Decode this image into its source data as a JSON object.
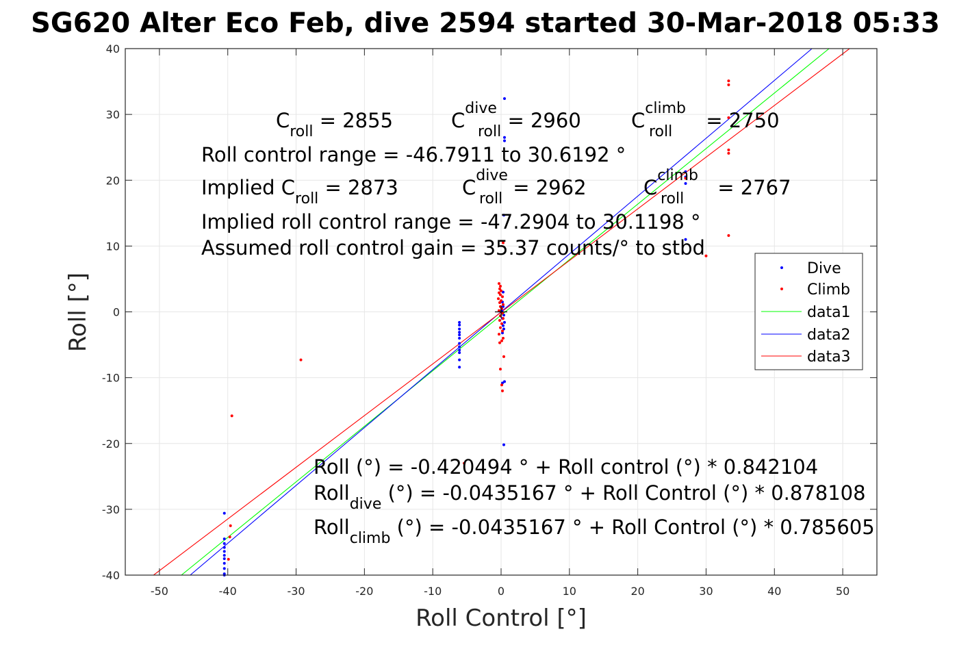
{
  "chart_data": {
    "type": "scatter",
    "title": "SG620 Alter Eco Feb, dive 2594 started 30-Mar-2018 05:33",
    "xlabel": "Roll Control [°]",
    "ylabel": "Roll [°]",
    "xlim": [
      -55,
      55
    ],
    "ylim": [
      -40,
      40
    ],
    "xticks": [
      -50,
      -40,
      -30,
      -20,
      -10,
      0,
      10,
      20,
      30,
      40,
      50
    ],
    "yticks": [
      -40,
      -30,
      -20,
      -10,
      0,
      10,
      20,
      30,
      40
    ],
    "xtick_labels": [
      "-50",
      "-40",
      "-30",
      "-20",
      "-10",
      "0",
      "10",
      "20",
      "30",
      "40",
      "50"
    ],
    "ytick_labels": [
      "-40",
      "-30",
      "-20",
      "-10",
      "0",
      "10",
      "20",
      "30",
      "40"
    ],
    "grid": true,
    "legend_position": "right",
    "series": [
      {
        "name": "Dive",
        "kind": "points",
        "color": "#0000ff",
        "points": [
          [
            0.5,
            32.4
          ],
          [
            0.5,
            26.5
          ],
          [
            0.5,
            26
          ],
          [
            27,
            21.3
          ],
          [
            27,
            20.5
          ],
          [
            27,
            19.5
          ],
          [
            27,
            11
          ],
          [
            0.4,
            14.7
          ],
          [
            0.3,
            3
          ],
          [
            0.2,
            1.5
          ],
          [
            0.3,
            0.8
          ],
          [
            0.1,
            0.2
          ],
          [
            0.4,
            -0.5
          ],
          [
            0.2,
            -1
          ],
          [
            0.5,
            -1.6
          ],
          [
            0.3,
            -2.1
          ],
          [
            0.4,
            -2.6
          ],
          [
            0.2,
            -3.2
          ],
          [
            0.5,
            -10.6
          ],
          [
            0.2,
            -10.8
          ],
          [
            0.4,
            -20.2
          ],
          [
            -6.1,
            -1.6
          ],
          [
            -6.1,
            -2
          ],
          [
            -6.1,
            -2.6
          ],
          [
            -6.1,
            -3.1
          ],
          [
            -6.1,
            -3.5
          ],
          [
            -6.1,
            -4
          ],
          [
            -6.1,
            -4.8
          ],
          [
            -6.1,
            -5.3
          ],
          [
            -6.1,
            -5.8
          ],
          [
            -6.1,
            -6.2
          ],
          [
            -6.1,
            -7.3
          ],
          [
            -6.1,
            -8.4
          ],
          [
            -40.5,
            -30.6
          ],
          [
            -40.5,
            -34.5
          ],
          [
            -40.5,
            -35.2
          ],
          [
            -40.5,
            -35.8
          ],
          [
            -40.5,
            -36.4
          ],
          [
            -40.5,
            -37
          ],
          [
            -40.5,
            -37.5
          ],
          [
            -40.5,
            -38.2
          ],
          [
            -40.5,
            -39
          ],
          [
            -40.5,
            -39.8
          ],
          [
            -40.5,
            -40
          ]
        ]
      },
      {
        "name": "Climb",
        "kind": "points",
        "color": "#ff0000",
        "points": [
          [
            33.3,
            35.1
          ],
          [
            33.3,
            34.5
          ],
          [
            33.3,
            29.5
          ],
          [
            33.3,
            24.6
          ],
          [
            33.3,
            24.1
          ],
          [
            33.3,
            11.6
          ],
          [
            30,
            8.5
          ],
          [
            27,
            20.3
          ],
          [
            0.3,
            10.5
          ],
          [
            -0.3,
            4.3
          ],
          [
            -0.1,
            3.9
          ],
          [
            -0.2,
            3.5
          ],
          [
            0,
            3.2
          ],
          [
            -0.3,
            2.9
          ],
          [
            -0.1,
            2.6
          ],
          [
            0.2,
            2.3
          ],
          [
            -0.4,
            2
          ],
          [
            0,
            1.7
          ],
          [
            -0.2,
            1.4
          ],
          [
            0.3,
            1.1
          ],
          [
            -0.1,
            0.8
          ],
          [
            0.1,
            0.5
          ],
          [
            -0.3,
            0.2
          ],
          [
            0.2,
            -0.2
          ],
          [
            -0.1,
            -0.6
          ],
          [
            0.3,
            -1
          ],
          [
            -0.2,
            -1.3
          ],
          [
            0.1,
            -1.8
          ],
          [
            -0.1,
            -2.4
          ],
          [
            0.2,
            -2.9
          ],
          [
            -0.3,
            -3.4
          ],
          [
            0.3,
            -4
          ],
          [
            0.1,
            -4.4
          ],
          [
            -0.2,
            -4.7
          ],
          [
            0.4,
            -6.8
          ],
          [
            -0.1,
            -8.7
          ],
          [
            0.1,
            -11.1
          ],
          [
            0.2,
            -12
          ],
          [
            -5.4,
            -23
          ],
          [
            -29.3,
            -7.3
          ],
          [
            -39.4,
            -15.8
          ],
          [
            -39.6,
            -32.5
          ],
          [
            -39.7,
            -34.2
          ],
          [
            -39.9,
            -37.6
          ]
        ]
      },
      {
        "name": "data1",
        "kind": "line",
        "color": "#00ff00",
        "x": [
          -46.79,
          48.0
        ],
        "y": [
          -40,
          40
        ]
      },
      {
        "name": "data2",
        "kind": "line",
        "color": "#0000ff",
        "x": [
          -45.5,
          45.5
        ],
        "y": [
          -40,
          40
        ]
      },
      {
        "name": "data3",
        "kind": "line",
        "color": "#ff0000",
        "x": [
          -50.86,
          51.0
        ],
        "y": [
          -40,
          40
        ]
      }
    ],
    "cross_marker": {
      "x": 0,
      "y": 0,
      "color": "#000000"
    }
  },
  "annotations_top": {
    "l1_c": "C",
    "l1_c_sub": "roll",
    "l1_c_val": " = 2855",
    "l1_d": "C",
    "l1_d_sup": "dive",
    "l1_d_sub": "roll",
    "l1_d_val": " = 2960",
    "l1_e": "C",
    "l1_e_sup": "climb",
    "l1_e_sub": "roll",
    "l1_e_val": " = 2750",
    "l2": "Roll control range = -46.7911 to 30.6192 °",
    "l3_a": "Implied C",
    "l3_a_sub": "roll",
    "l3_a_val": " = 2873",
    "l3_d": "C",
    "l3_d_sup": "dive",
    "l3_d_sub": "roll",
    "l3_d_val": " = 2962",
    "l3_e": "C",
    "l3_e_sup": "climb",
    "l3_e_sub": "roll",
    "l3_e_val": " = 2767",
    "l4": "Implied roll control range = -47.2904 to 30.1198 °",
    "l5": "Assumed roll control gain = 35.37 counts/° to stbd"
  },
  "annotations_bottom": {
    "b1": "Roll (°) = -0.420494 ° + Roll control (°) * 0.842104",
    "b2_a": "Roll",
    "b2_sub": "dive",
    "b2_b": " (°) = -0.0435167 ° + Roll Control (°) * 0.878108",
    "b3_a": "Roll",
    "b3_sub": "climb",
    "b3_b": " (°) = -0.0435167 ° + Roll Control (°) * 0.785605"
  }
}
